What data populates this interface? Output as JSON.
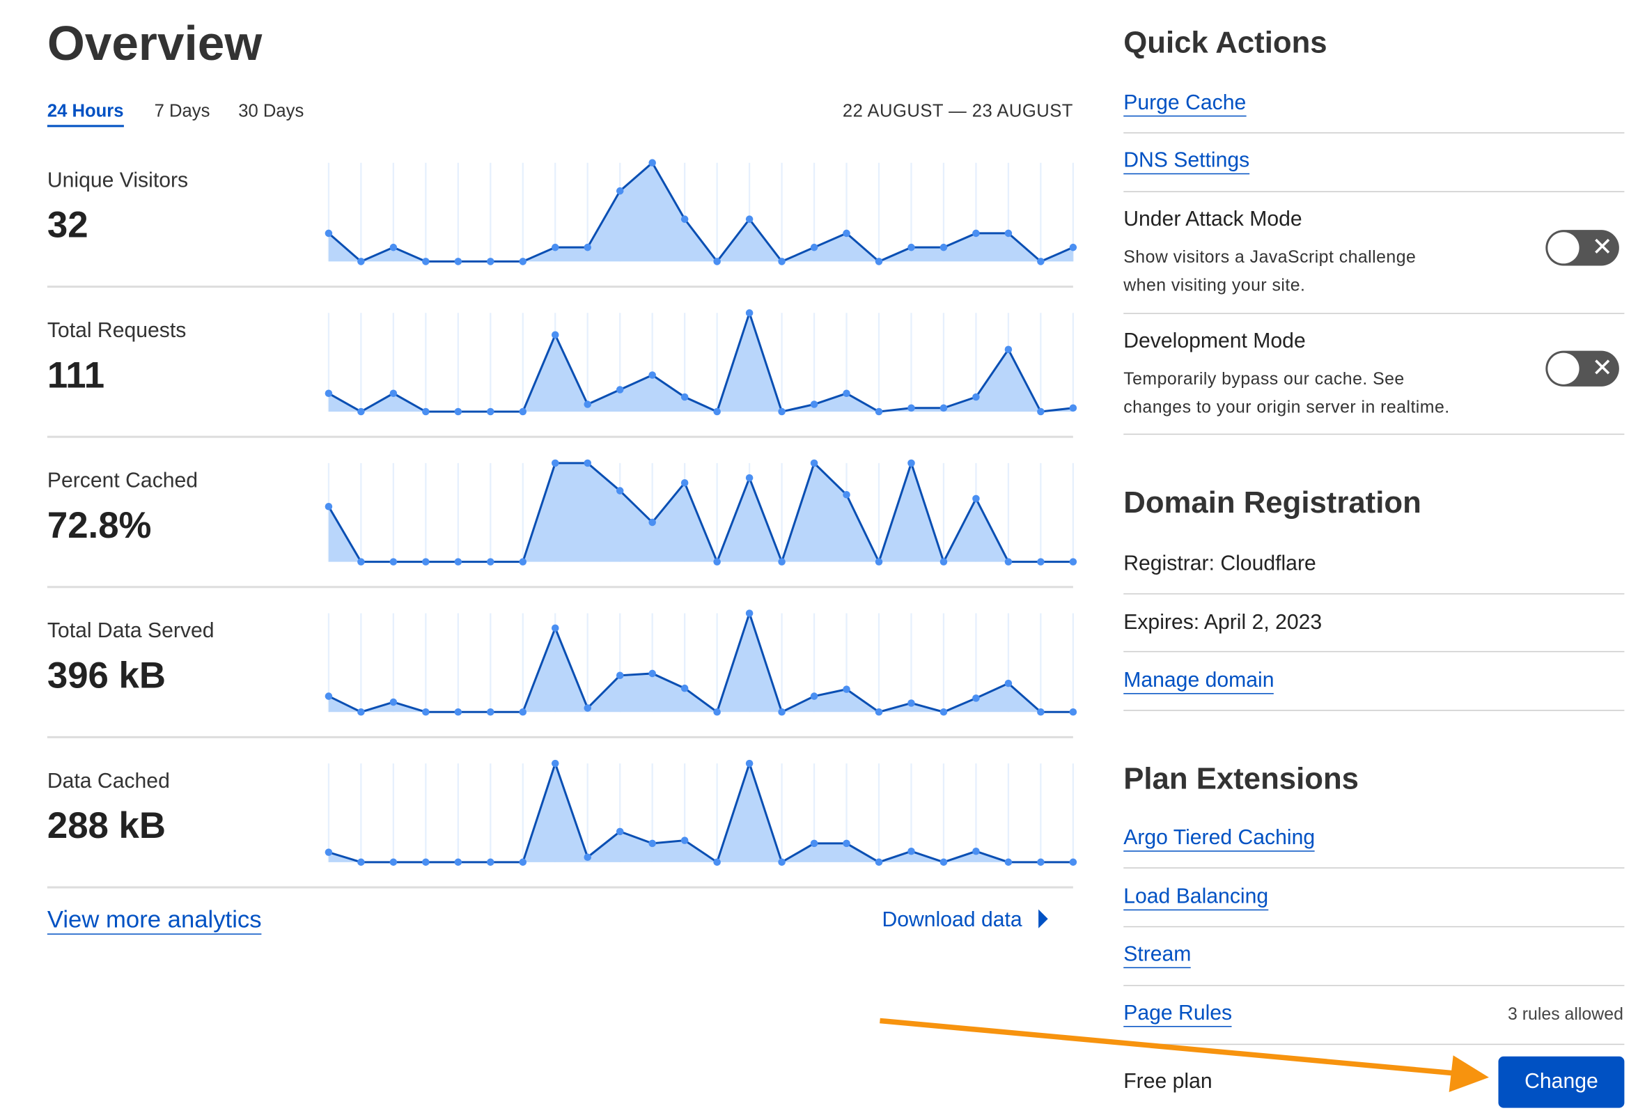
{
  "overview": {
    "title": "Overview",
    "tabs": [
      {
        "label": "24 Hours",
        "active": true
      },
      {
        "label": "7 Days",
        "active": false
      },
      {
        "label": "30 Days",
        "active": false
      }
    ],
    "date_range": "22 AUGUST — 23 AUGUST",
    "metrics": [
      {
        "label": "Unique Visitors",
        "value": "32"
      },
      {
        "label": "Total Requests",
        "value": "111"
      },
      {
        "label": "Percent Cached",
        "value": "72.8%"
      },
      {
        "label": "Total Data Served",
        "value": "396 kB"
      },
      {
        "label": "Data Cached",
        "value": "288 kB"
      }
    ],
    "view_more": "View more analytics",
    "download": "Download data"
  },
  "chart_data": [
    {
      "type": "area",
      "name": "Unique Visitors",
      "values": [
        2,
        0,
        1,
        0,
        0,
        0,
        0,
        1,
        1,
        5,
        7,
        3,
        0,
        3,
        0,
        1,
        2,
        0,
        1,
        1,
        2,
        2,
        0,
        1
      ]
    },
    {
      "type": "area",
      "name": "Total Requests",
      "values": [
        5,
        0,
        5,
        0,
        0,
        0,
        0,
        21,
        2,
        6,
        10,
        4,
        0,
        27,
        0,
        2,
        5,
        0,
        1,
        1,
        4,
        17,
        0,
        1
      ]
    },
    {
      "type": "area",
      "name": "Percent Cached",
      "values": [
        56,
        0,
        0,
        0,
        0,
        0,
        0,
        100,
        100,
        72,
        40,
        80,
        0,
        85,
        0,
        100,
        68,
        0,
        100,
        0,
        64,
        0,
        0,
        0
      ]
    },
    {
      "type": "area",
      "name": "Total Data Served",
      "values": [
        16,
        0,
        10,
        0,
        0,
        0,
        0,
        85,
        4,
        37,
        39,
        24,
        0,
        100,
        0,
        16,
        23,
        0,
        9,
        0,
        14,
        29,
        0,
        0
      ]
    },
    {
      "type": "area",
      "name": "Data Cached",
      "values": [
        10,
        0,
        0,
        0,
        0,
        0,
        0,
        100,
        5,
        31,
        19,
        22,
        0,
        100,
        0,
        19,
        19,
        0,
        11,
        0,
        11,
        0,
        0,
        0
      ]
    }
  ],
  "quick_actions": {
    "title": "Quick Actions",
    "links": [
      "Purge Cache",
      "DNS Settings"
    ],
    "toggles": [
      {
        "title": "Under Attack Mode",
        "desc1": "Show visitors a JavaScript challenge",
        "desc2": "when visiting your site.",
        "on": false
      },
      {
        "title": "Development Mode",
        "desc1": "Temporarily bypass our cache. See",
        "desc2": "changes to your origin server in realtime.",
        "on": false
      }
    ]
  },
  "domain_registration": {
    "title": "Domain Registration",
    "registrar": "Registrar: Cloudflare",
    "expires": "Expires: April 2, 2023",
    "manage": "Manage domain"
  },
  "plan_extensions": {
    "title": "Plan Extensions",
    "links": [
      "Argo Tiered Caching",
      "Load Balancing",
      "Stream",
      "Page Rules"
    ],
    "page_rules_note": "3 rules allowed",
    "plan": "Free plan",
    "change": "Change"
  },
  "colors": {
    "accent": "#0051c3",
    "chart_fill": "#b9d6fb",
    "chart_line": "#0a4fb3",
    "chart_point": "#4a8ff2",
    "annotation_arrow": "#f7930e"
  }
}
